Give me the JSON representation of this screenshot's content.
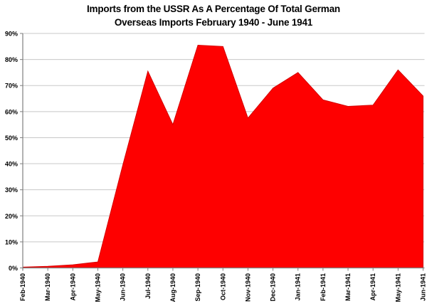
{
  "colors": {
    "series_fill": "#fe0000",
    "series_border": "#d40000",
    "gridline": "#c8c8c8",
    "axis": "#7f7f7f",
    "text": "#000000",
    "background": "#ffffff"
  },
  "chart_data": {
    "type": "area",
    "title": "Imports from the USSR As A Percentage Of Total German Overseas Imports February 1940 - June 1941",
    "title_lines": [
      "Imports from the USSR As A Percentage Of Total German",
      "Overseas Imports February 1940 - June 1941"
    ],
    "categories": [
      "Feb-1940",
      "Mar-1940",
      "Apr-1940",
      "May-1940",
      "Jun-1940",
      "Jul-1940",
      "Aug-1940",
      "Sep-1940",
      "Oct-1940",
      "Nov-1940",
      "Dec-1940",
      "Jan-1941",
      "Feb-1941",
      "Mar-1941",
      "Apr-1941",
      "May-1941",
      "Jun-1941"
    ],
    "values": [
      0.3,
      0.6,
      1.2,
      2.3,
      39.5,
      75.5,
      55,
      85.5,
      85,
      57.5,
      69,
      75,
      64.5,
      62,
      62.5,
      76,
      66
    ],
    "xlabel": "",
    "ylabel": "",
    "ylim": [
      0,
      90
    ],
    "ytick_step": 10,
    "ytick_labels": [
      "0%",
      "10%",
      "20%",
      "30%",
      "40%",
      "50%",
      "60%",
      "70%",
      "80%",
      "90%"
    ],
    "grid": true,
    "legend": false
  }
}
